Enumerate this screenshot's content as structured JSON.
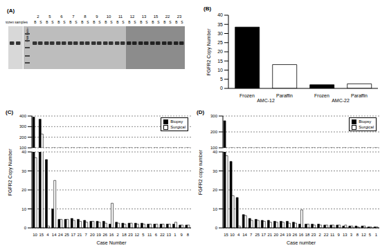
{
  "gel": {
    "title": "(A)",
    "label": "frozen samples",
    "ladder": "DNA ladder",
    "lanes": [
      "2",
      "5",
      "6",
      "7",
      "8",
      "9",
      "10",
      "11",
      "12",
      "13",
      "15",
      "22",
      "23"
    ],
    "lane_labels": [
      "B",
      "S"
    ]
  },
  "chart_data": [
    {
      "type": "bar",
      "title": "(B)",
      "categories": [
        "Frozen",
        "Paraffin",
        "Frozen",
        "Paraffin"
      ],
      "group_labels": [
        "AMC-12",
        "AMC-22"
      ],
      "values": [
        33.5,
        13,
        2,
        2.5
      ],
      "colors": [
        "#000000",
        "#ffffff",
        "#000000",
        "#ffffff"
      ],
      "y_label": "FGFR2 Copy Number",
      "ylim": [
        0,
        40
      ],
      "yticks": [
        0,
        5,
        10,
        15,
        20,
        25,
        30,
        35,
        40
      ]
    },
    {
      "type": "bar",
      "title": "(C)",
      "x_label": "Case Number",
      "y_label": "FGFR2 Copy Number",
      "categories": [
        "10",
        "15",
        "4",
        "14",
        "24",
        "25",
        "17",
        "21",
        "7",
        "20",
        "19",
        "26",
        "16",
        "2",
        "18",
        "23",
        "12",
        "5",
        "11",
        "6",
        "22",
        "13",
        "1",
        "9",
        "8"
      ],
      "series": [
        {
          "name": "Biopsy",
          "color": "#000000",
          "values": [
            390,
            370,
            36,
            10,
            4.5,
            4.5,
            5,
            4.5,
            4,
            3.5,
            3.5,
            3.5,
            2,
            3,
            2.5,
            2.5,
            2.5,
            2.5,
            2,
            2,
            2,
            2,
            2,
            1.5,
            1.5
          ]
        },
        {
          "name": "Surgical",
          "color": "#ffffff",
          "values": [
            37,
            230,
            1,
            25,
            4.5,
            4.5,
            4,
            3.5,
            3,
            3.5,
            3,
            2.5,
            13,
            2.5,
            2,
            2.5,
            2,
            2,
            2,
            2,
            2,
            2,
            3,
            1.5,
            1.5
          ]
        }
      ],
      "ylim": [
        0,
        400
      ],
      "yticks": [
        0,
        10,
        20,
        30,
        40,
        100,
        200,
        300,
        400
      ],
      "axis_break": [
        40,
        100
      ],
      "grid": true,
      "legend": "upper right"
    },
    {
      "type": "bar",
      "title": "(D)",
      "x_label": "Case number",
      "y_label": "FGFR2 copy number",
      "categories": [
        "15",
        "10",
        "4",
        "14",
        "7",
        "25",
        "17",
        "21",
        "20",
        "24",
        "19",
        "26",
        "16",
        "18",
        "23",
        "2",
        "22",
        "11",
        "9",
        "13",
        "3",
        "8",
        "12",
        "5",
        "1"
      ],
      "series": [
        {
          "name": "Biopsy",
          "color": "#000000",
          "values": [
            270,
            35,
            16,
            7,
            5,
            4.5,
            4,
            4,
            3.5,
            3.5,
            3.5,
            3,
            2,
            2,
            2,
            2,
            1.5,
            1.5,
            1.5,
            1,
            1,
            1,
            1,
            0.5,
            0.5
          ]
        },
        {
          "name": "Surgical",
          "color": "#ffffff",
          "values": [
            38,
            17,
            1,
            6.5,
            4,
            4,
            3.5,
            3,
            3,
            3,
            2.5,
            2.5,
            9.5,
            2,
            1.5,
            1.5,
            1.5,
            1.5,
            1.5,
            1.5,
            1,
            0.5,
            1,
            0.5,
            0.5
          ]
        }
      ],
      "ylim": [
        0,
        300
      ],
      "yticks": [
        0,
        10,
        20,
        30,
        40,
        100,
        200,
        300
      ],
      "axis_break": [
        40,
        100
      ],
      "grid": true,
      "legend": "upper right"
    }
  ]
}
